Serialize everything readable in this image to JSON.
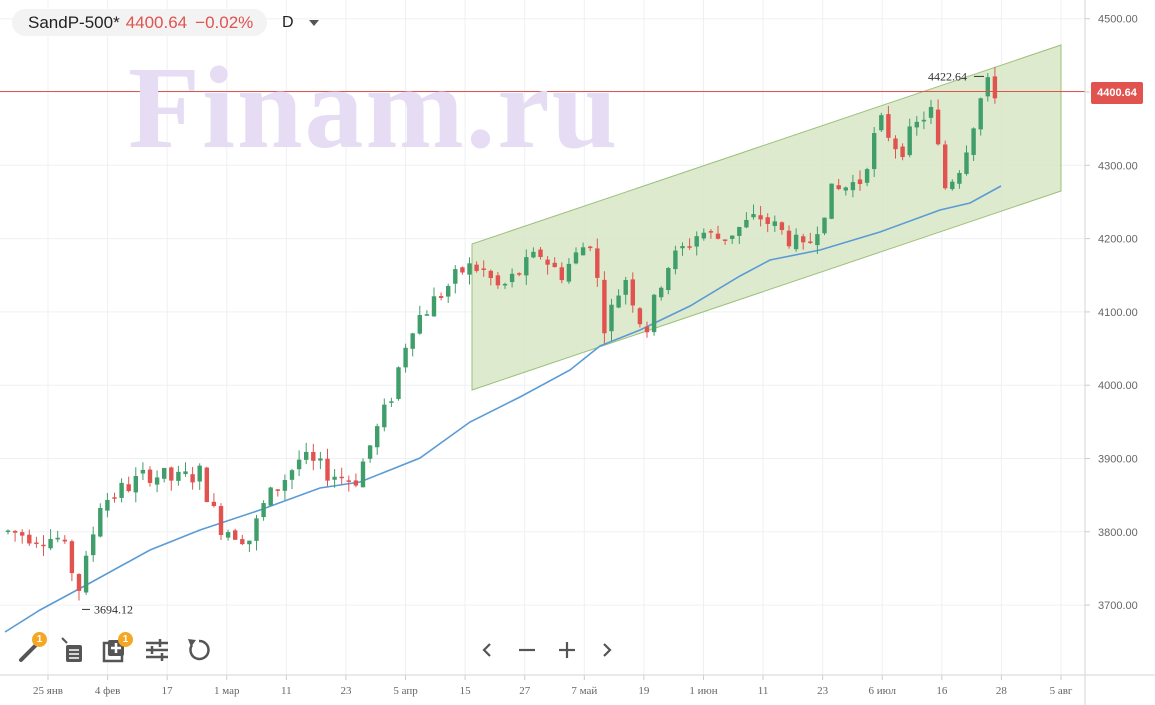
{
  "header": {
    "symbol": "SandP-500*",
    "price": "4400.64",
    "change": "−0.02%",
    "interval": "D"
  },
  "watermark": "Finam.ru",
  "price_axis": {
    "ticks": [
      "4500.00",
      "4400.00",
      "4300.00",
      "4200.00",
      "4100.00",
      "4000.00",
      "3900.00",
      "3800.00",
      "3700.00"
    ],
    "current_price_tag": "4400.64"
  },
  "time_axis": {
    "ticks": [
      "25 янв",
      "4 фев",
      "17",
      "1 мар",
      "11",
      "23",
      "5 апр",
      "15",
      "27",
      "7 май",
      "19",
      "1 июн",
      "11",
      "23",
      "6 июл",
      "16",
      "28",
      "5 авг"
    ]
  },
  "annotations": {
    "low_label": "3694.12",
    "high_label": "4422.64"
  },
  "colors": {
    "up": "#3f9e6a",
    "down": "#e0534f",
    "ma_line": "#5b9bd5",
    "channel_fill": "#d8e6c6",
    "channel_stroke": "#9cc07a"
  },
  "toolbar": {
    "items": [
      {
        "icon": "brush-icon",
        "badge": "1"
      },
      {
        "icon": "list-icon",
        "badge": ""
      },
      {
        "icon": "add-indicator-icon",
        "badge": "1"
      },
      {
        "icon": "settings-sliders-icon",
        "badge": ""
      },
      {
        "icon": "reset-icon",
        "badge": ""
      }
    ]
  },
  "navigation": {
    "items": [
      "chevron-left-icon",
      "zoom-out-icon",
      "zoom-in-icon",
      "chevron-right-icon"
    ]
  }
}
